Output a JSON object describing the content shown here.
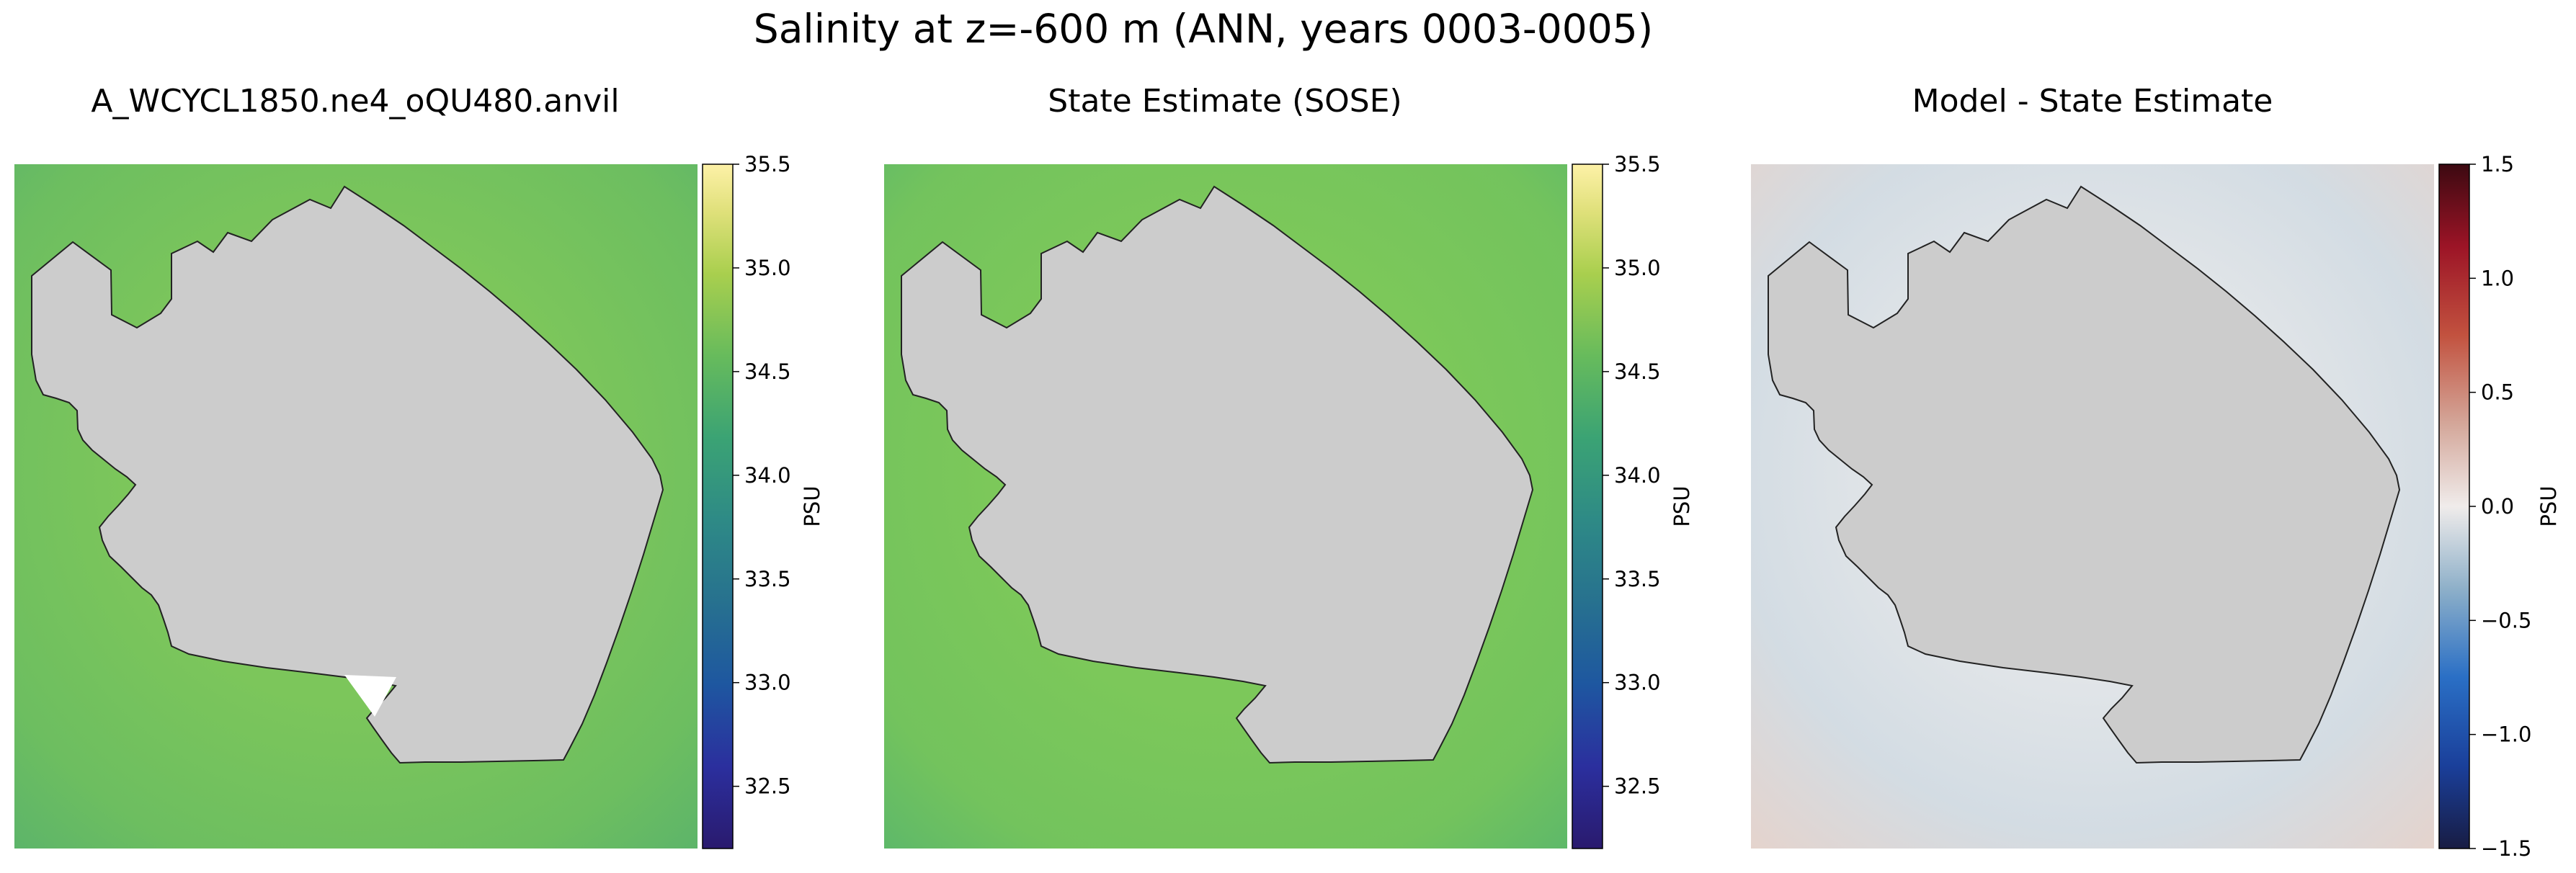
{
  "figure": {
    "suptitle": "Salinity at z=-600 m (ANN, years 0003-0005)"
  },
  "chart_data": [
    {
      "type": "heatmap",
      "title": "A_WCYCL1850.ne4_oQU480.anvil",
      "colormap": "haline",
      "colorbar": {
        "label": "PSU",
        "range": [
          32.2,
          35.5
        ],
        "ticks": [
          32.5,
          33.0,
          33.5,
          34.0,
          34.5,
          35.0,
          35.5
        ]
      },
      "field": {
        "typical_value": 34.6,
        "range": [
          34.3,
          34.7
        ]
      }
    },
    {
      "type": "heatmap",
      "title": "State Estimate (SOSE)",
      "colormap": "haline",
      "colorbar": {
        "label": "PSU",
        "range": [
          32.2,
          35.5
        ],
        "ticks": [
          32.5,
          33.0,
          33.5,
          34.0,
          34.5,
          35.0,
          35.5
        ]
      },
      "field": {
        "typical_value": 34.7,
        "range": [
          34.3,
          34.75
        ]
      }
    },
    {
      "type": "heatmap",
      "title": "Model - State Estimate",
      "colormap": "balance",
      "colorbar": {
        "label": "PSU",
        "range": [
          -1.5,
          1.5
        ],
        "ticks": [
          -1.5,
          -1.0,
          -0.5,
          0.0,
          0.5,
          1.0,
          1.5
        ],
        "tick_labels": [
          "−1.5",
          "−1.0",
          "−0.5",
          "0.0",
          "0.5",
          "1.0",
          "1.5"
        ]
      },
      "field": {
        "typical_value": -0.05,
        "range": [
          -0.2,
          0.2
        ]
      }
    }
  ],
  "colors": {
    "land": "#cccccc",
    "coast": "#222222",
    "haline_bg": "#74c25c",
    "diff_bg": "#dde3e8"
  }
}
